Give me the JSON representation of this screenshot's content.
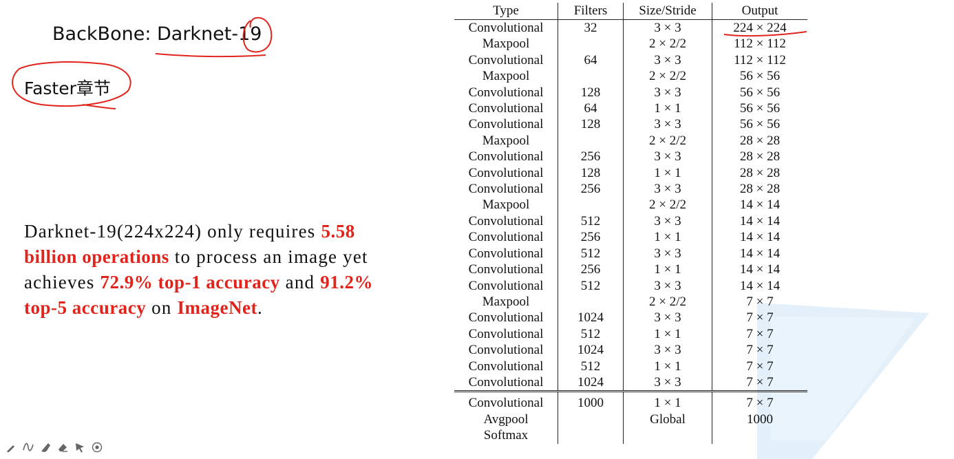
{
  "slide": {
    "title": "BackBone: Darknet-19",
    "note": "Faster章节",
    "description": {
      "line1_plain": "Darknet-19(224x224) only requires ",
      "line1_hl": "5.58",
      "line2_hl": "billion operations",
      "line2_plain": " to process an image yet",
      "line3_plain1": "achieves ",
      "line3_hl1": "72.9% top-1 accuracy",
      "line3_plain2": " and ",
      "line3_hl2": "91.2%",
      "line4_hl1": "top-5 accuracy",
      "line4_plain": " on ",
      "line4_hl2": "ImageNet",
      "line4_end": "."
    }
  },
  "table": {
    "headers": [
      "Type",
      "Filters",
      "Size/Stride",
      "Output"
    ],
    "rows": [
      [
        "Convolutional",
        "32",
        "3 × 3",
        "224 × 224"
      ],
      [
        "Maxpool",
        "",
        "2 × 2/2",
        "112 × 112"
      ],
      [
        "Convolutional",
        "64",
        "3 × 3",
        "112 × 112"
      ],
      [
        "Maxpool",
        "",
        "2 × 2/2",
        "56 × 56"
      ],
      [
        "Convolutional",
        "128",
        "3 × 3",
        "56 × 56"
      ],
      [
        "Convolutional",
        "64",
        "1 × 1",
        "56 × 56"
      ],
      [
        "Convolutional",
        "128",
        "3 × 3",
        "56 × 56"
      ],
      [
        "Maxpool",
        "",
        "2 × 2/2",
        "28 × 28"
      ],
      [
        "Convolutional",
        "256",
        "3 × 3",
        "28 × 28"
      ],
      [
        "Convolutional",
        "128",
        "1 × 1",
        "28 × 28"
      ],
      [
        "Convolutional",
        "256",
        "3 × 3",
        "28 × 28"
      ],
      [
        "Maxpool",
        "",
        "2 × 2/2",
        "14 × 14"
      ],
      [
        "Convolutional",
        "512",
        "3 × 3",
        "14 × 14"
      ],
      [
        "Convolutional",
        "256",
        "1 × 1",
        "14 × 14"
      ],
      [
        "Convolutional",
        "512",
        "3 × 3",
        "14 × 14"
      ],
      [
        "Convolutional",
        "256",
        "1 × 1",
        "14 × 14"
      ],
      [
        "Convolutional",
        "512",
        "3 × 3",
        "14 × 14"
      ],
      [
        "Maxpool",
        "",
        "2 × 2/2",
        "7 × 7"
      ],
      [
        "Convolutional",
        "1024",
        "3 × 3",
        "7 × 7"
      ],
      [
        "Convolutional",
        "512",
        "1 × 1",
        "7 × 7"
      ],
      [
        "Convolutional",
        "1024",
        "3 × 3",
        "7 × 7"
      ],
      [
        "Convolutional",
        "512",
        "1 × 1",
        "7 × 7"
      ],
      [
        "Convolutional",
        "1024",
        "3 × 3",
        "7 × 7"
      ]
    ],
    "footer_rows": [
      [
        "Convolutional",
        "1000",
        "1 × 1",
        "7 × 7"
      ],
      [
        "Avgpool",
        "",
        "Global",
        "1000"
      ],
      [
        "Softmax",
        "",
        "",
        ""
      ]
    ]
  },
  "toolbar": {
    "icons": [
      "pen-icon",
      "curve-icon",
      "highlighter-icon",
      "eraser-icon",
      "pointer-icon",
      "record-icon"
    ]
  },
  "colors": {
    "highlight": "#e0241b",
    "annotation": "#e0241b",
    "wedge": "#dcecf8"
  }
}
